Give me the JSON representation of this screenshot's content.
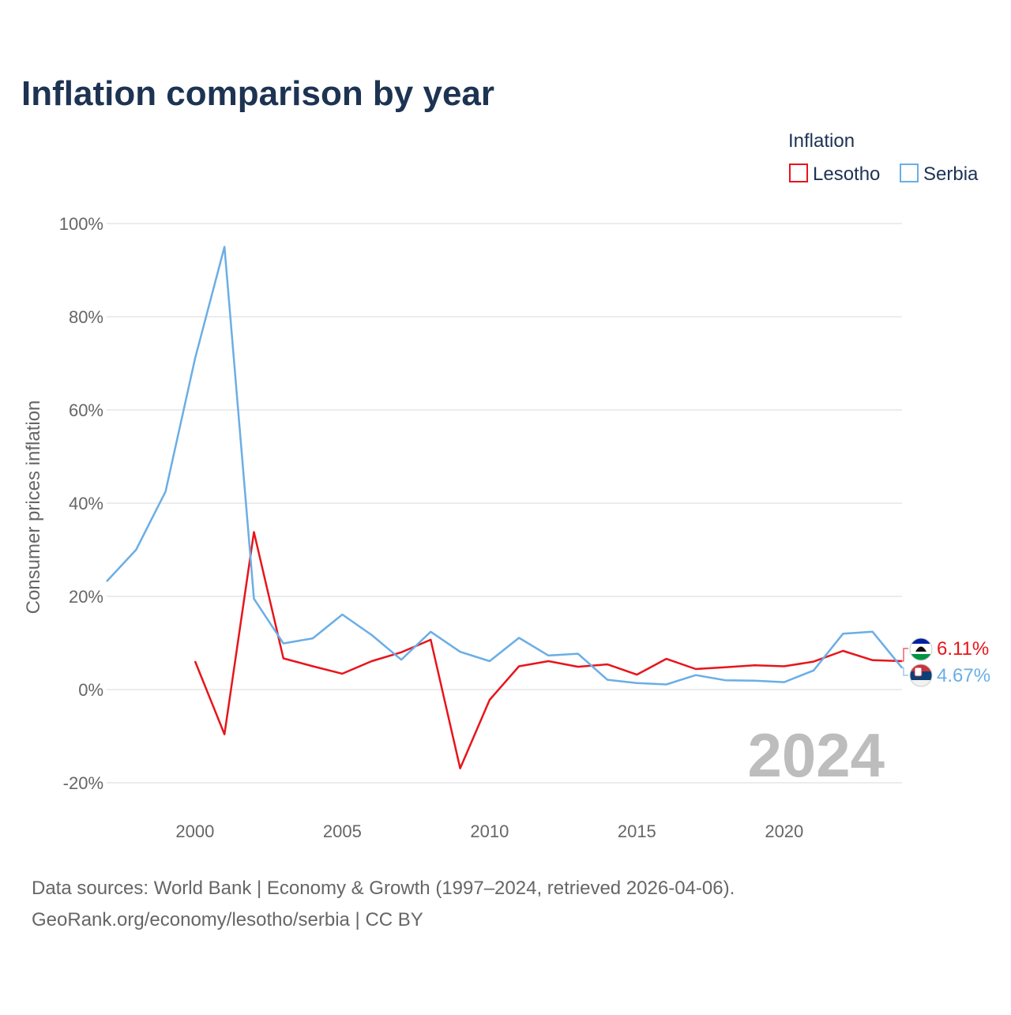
{
  "chart_data": {
    "type": "line",
    "title": "Inflation comparison by year",
    "xlabel": "",
    "ylabel": "Consumer prices inflation",
    "xlim": [
      1997,
      2024
    ],
    "ylim": [
      -20,
      100
    ],
    "y_ticks": [
      -20,
      0,
      20,
      40,
      60,
      80,
      100
    ],
    "y_tick_labels": [
      "-20%",
      "0%",
      "20%",
      "40%",
      "60%",
      "80%",
      "100%"
    ],
    "x_ticks": [
      2000,
      2005,
      2010,
      2015,
      2020
    ],
    "x_tick_labels": [
      "2000",
      "2005",
      "2010",
      "2015",
      "2020"
    ],
    "grid": true,
    "legend_title": "Inflation",
    "legend_position": "top-right",
    "current_year_label": "2024",
    "series": [
      {
        "name": "Lesotho",
        "color": "#e8141b",
        "end_label": "6.11%",
        "x": [
          2000,
          2001,
          2002,
          2003,
          2004,
          2005,
          2006,
          2007,
          2008,
          2009,
          2010,
          2011,
          2012,
          2013,
          2014,
          2015,
          2016,
          2017,
          2018,
          2019,
          2020,
          2021,
          2022,
          2023,
          2024
        ],
        "values": [
          6.1,
          -9.6,
          33.8,
          6.7,
          5.0,
          3.4,
          6.1,
          8.0,
          10.7,
          -16.9,
          -2.2,
          5.0,
          6.1,
          4.9,
          5.4,
          3.2,
          6.6,
          4.4,
          4.8,
          5.2,
          5.0,
          6.0,
          8.3,
          6.3,
          6.11
        ]
      },
      {
        "name": "Serbia",
        "color": "#6aaee6",
        "end_label": "4.67%",
        "x": [
          1997,
          1998,
          1999,
          2000,
          2001,
          2002,
          2003,
          2004,
          2005,
          2006,
          2007,
          2008,
          2009,
          2010,
          2011,
          2012,
          2013,
          2014,
          2015,
          2016,
          2017,
          2018,
          2019,
          2020,
          2021,
          2022,
          2023,
          2024
        ],
        "values": [
          23.2,
          30.0,
          42.5,
          71.0,
          95.0,
          19.5,
          9.9,
          11.0,
          16.1,
          11.7,
          6.4,
          12.4,
          8.1,
          6.1,
          11.1,
          7.3,
          7.7,
          2.1,
          1.4,
          1.1,
          3.1,
          2.0,
          1.9,
          1.6,
          4.1,
          12.0,
          12.4,
          4.67
        ]
      }
    ]
  },
  "source": {
    "line1": "Data sources: World Bank | Economy & Growth (1997–2024, retrieved 2026-04-06).",
    "line2": "GeoRank.org/economy/lesotho/serbia | CC BY"
  }
}
